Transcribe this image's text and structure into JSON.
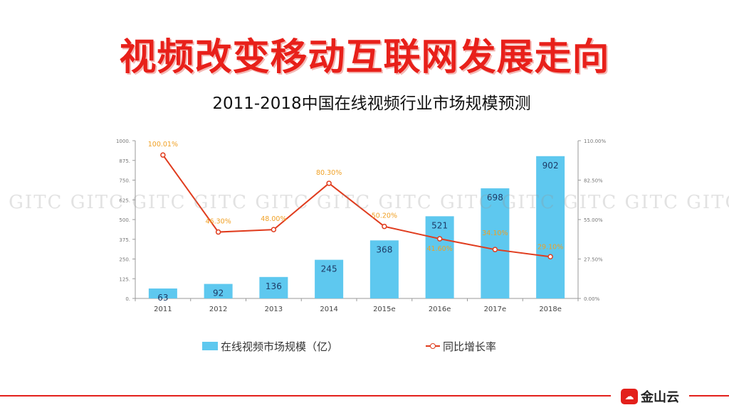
{
  "headline": "视频改变移动互联网发展走向",
  "watermark": "C GITC GITC GITC GITC GITC GITC GITC GITC GITC GITC GITC GITC GITC GITC GITC",
  "logo": {
    "icon": "cloud-logo-icon",
    "name": "金山云"
  },
  "colors": {
    "headline": "#e8201a",
    "bar": "#5ec8ef",
    "line": "#e03c1e",
    "point_label": "#f0a024",
    "footer": "#e3201b"
  },
  "chart_data": {
    "type": "bar",
    "title": "2011-2018中国在线视频行业市场规模预测",
    "categories": [
      "2011",
      "2012",
      "2013",
      "2014",
      "2015e",
      "2016e",
      "2017e",
      "2018e"
    ],
    "series": [
      {
        "name": "在线视频市场规模（亿）",
        "type": "bar",
        "axis": "left",
        "values": [
          63,
          92,
          136,
          245,
          368,
          521,
          698,
          902
        ]
      },
      {
        "name": "同比增长率",
        "type": "line",
        "axis": "right",
        "values": [
          100.01,
          46.3,
          48.0,
          80.3,
          50.2,
          41.6,
          34.1,
          29.1
        ],
        "labels": [
          "100.01%",
          "46.30%",
          "48.00%",
          "80.30%",
          "50.20%",
          "41.60%",
          "34.10%",
          "29.10%"
        ]
      }
    ],
    "y_left": {
      "ylim": [
        0,
        1000
      ],
      "ticks": [
        "0",
        "125",
        "250",
        "375",
        "500",
        "625",
        "750",
        "875",
        "1000"
      ]
    },
    "y_right": {
      "ylim": [
        0,
        110
      ],
      "ticks": [
        "0.00%",
        "27.50%",
        "55.00%",
        "82.50%",
        "110.00%"
      ]
    },
    "legend": {
      "bar_label": "在线视频市场规模（亿）",
      "line_label": "同比增长率",
      "placement": "bottom"
    }
  }
}
